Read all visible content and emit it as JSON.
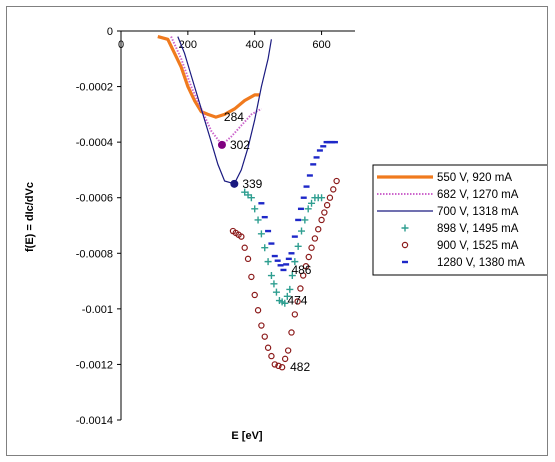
{
  "chart_data": {
    "type": "scatter",
    "xlabel": "E [eV]",
    "ylabel": "f(E) = dIc/dVc",
    "xlim": [
      0,
      700
    ],
    "ylim": [
      -0.0014,
      0
    ],
    "x_ticks": [
      "0",
      "200",
      "400",
      "600"
    ],
    "x_tick_values": [
      0,
      200,
      400,
      600
    ],
    "y_ticks": [
      "0",
      "-0.0002",
      "-0.0004",
      "-0.0006",
      "-0.0008",
      "-0.001",
      "-0.0012",
      "-0.0014"
    ],
    "y_tick_values": [
      0,
      -0.0002,
      -0.0004,
      -0.0006,
      -0.0008,
      -0.001,
      -0.0012,
      -0.0014
    ],
    "legend_position": "right",
    "series": [
      {
        "name": "550 V, 920 mA",
        "color": "#F07A1E",
        "marker": "line-thick",
        "points": [
          [
            110,
            -2e-05
          ],
          [
            140,
            -3e-05
          ],
          [
            160,
            -8e-05
          ],
          [
            180,
            -0.00013
          ],
          [
            200,
            -0.0002
          ],
          [
            220,
            -0.00025
          ],
          [
            240,
            -0.00029
          ],
          [
            260,
            -0.0003
          ],
          [
            284,
            -0.00031
          ],
          [
            310,
            -0.0003
          ],
          [
            340,
            -0.00028
          ],
          [
            370,
            -0.00025
          ],
          [
            400,
            -0.00023
          ],
          [
            415,
            -0.00023
          ]
        ]
      },
      {
        "name": "682 V, 1270 mA",
        "color": "#CC66CC",
        "marker": "dotted",
        "points": [
          [
            150,
            -2e-05
          ],
          [
            180,
            -0.0001
          ],
          [
            210,
            -0.0002
          ],
          [
            240,
            -0.00028
          ],
          [
            270,
            -0.00036
          ],
          [
            302,
            -0.00041
          ],
          [
            330,
            -0.00038
          ],
          [
            360,
            -0.00034
          ],
          [
            390,
            -0.0003
          ],
          [
            420,
            -0.00028
          ]
        ]
      },
      {
        "name": "700 V, 1318 mA",
        "color": "#1A1A80",
        "marker": "line-thin",
        "points": [
          [
            170,
            -2e-05
          ],
          [
            190,
            -8e-05
          ],
          [
            210,
            -0.00016
          ],
          [
            230,
            -0.00024
          ],
          [
            250,
            -0.00032
          ],
          [
            270,
            -0.0004
          ],
          [
            290,
            -0.00048
          ],
          [
            310,
            -0.00054
          ],
          [
            339,
            -0.00055
          ],
          [
            360,
            -0.0005
          ],
          [
            380,
            -0.00042
          ],
          [
            400,
            -0.00032
          ],
          [
            420,
            -0.0002
          ],
          [
            440,
            -0.0001
          ],
          [
            450,
            -3e-05
          ]
        ]
      },
      {
        "name": "898 V, 1495 mA",
        "color": "#2E9E90",
        "marker": "plus",
        "points": [
          [
            370,
            -0.00058
          ],
          [
            390,
            -0.0006
          ],
          [
            410,
            -0.00068
          ],
          [
            430,
            -0.00078
          ],
          [
            450,
            -0.00088
          ],
          [
            465,
            -0.00094
          ],
          [
            474,
            -0.00097
          ],
          [
            490,
            -0.00098
          ],
          [
            505,
            -0.00093
          ],
          [
            520,
            -0.00083
          ],
          [
            540,
            -0.00072
          ],
          [
            560,
            -0.00064
          ],
          [
            580,
            -0.0006
          ],
          [
            600,
            -0.0006
          ]
        ]
      },
      {
        "name": "900 V, 1525 mA",
        "color": "#8B1A1A",
        "marker": "circle",
        "points": [
          [
            335,
            -0.00072
          ],
          [
            360,
            -0.00074
          ],
          [
            380,
            -0.00082
          ],
          [
            400,
            -0.00095
          ],
          [
            420,
            -0.00106
          ],
          [
            440,
            -0.00114
          ],
          [
            460,
            -0.0012
          ],
          [
            482,
            -0.00121
          ],
          [
            500,
            -0.00115
          ],
          [
            520,
            -0.00102
          ],
          [
            545,
            -0.00088
          ],
          [
            570,
            -0.00078
          ],
          [
            600,
            -0.00068
          ],
          [
            625,
            -0.0006
          ],
          [
            645,
            -0.00054
          ]
        ]
      },
      {
        "name": "1280 V, 1380 mA",
        "color": "#1E28C8",
        "marker": "dash",
        "points": [
          [
            420,
            -0.00062
          ],
          [
            440,
            -0.00072
          ],
          [
            460,
            -0.00081
          ],
          [
            486,
            -0.00086
          ],
          [
            510,
            -0.0008
          ],
          [
            530,
            -0.00068
          ],
          [
            555,
            -0.00056
          ],
          [
            575,
            -0.00048
          ],
          [
            595,
            -0.00043
          ],
          [
            615,
            -0.0004
          ],
          [
            640,
            -0.0004
          ]
        ]
      }
    ],
    "annotations": [
      {
        "text": "284",
        "x": 284,
        "y": -0.00031,
        "color": "#F07A1E",
        "dot": false
      },
      {
        "text": "302",
        "x": 302,
        "y": -0.00041,
        "color": "#800080",
        "dot": true
      },
      {
        "text": "339",
        "x": 339,
        "y": -0.00055,
        "color": "#1A1A80",
        "dot": true
      },
      {
        "text": "486",
        "x": 486,
        "y": -0.00086,
        "color": "#1E28C8",
        "dot": false
      },
      {
        "text": "474",
        "x": 474,
        "y": -0.00097,
        "color": "#2E9E90",
        "dot": false
      },
      {
        "text": "482",
        "x": 482,
        "y": -0.00121,
        "color": "#8B1A1A",
        "dot": false
      }
    ]
  }
}
